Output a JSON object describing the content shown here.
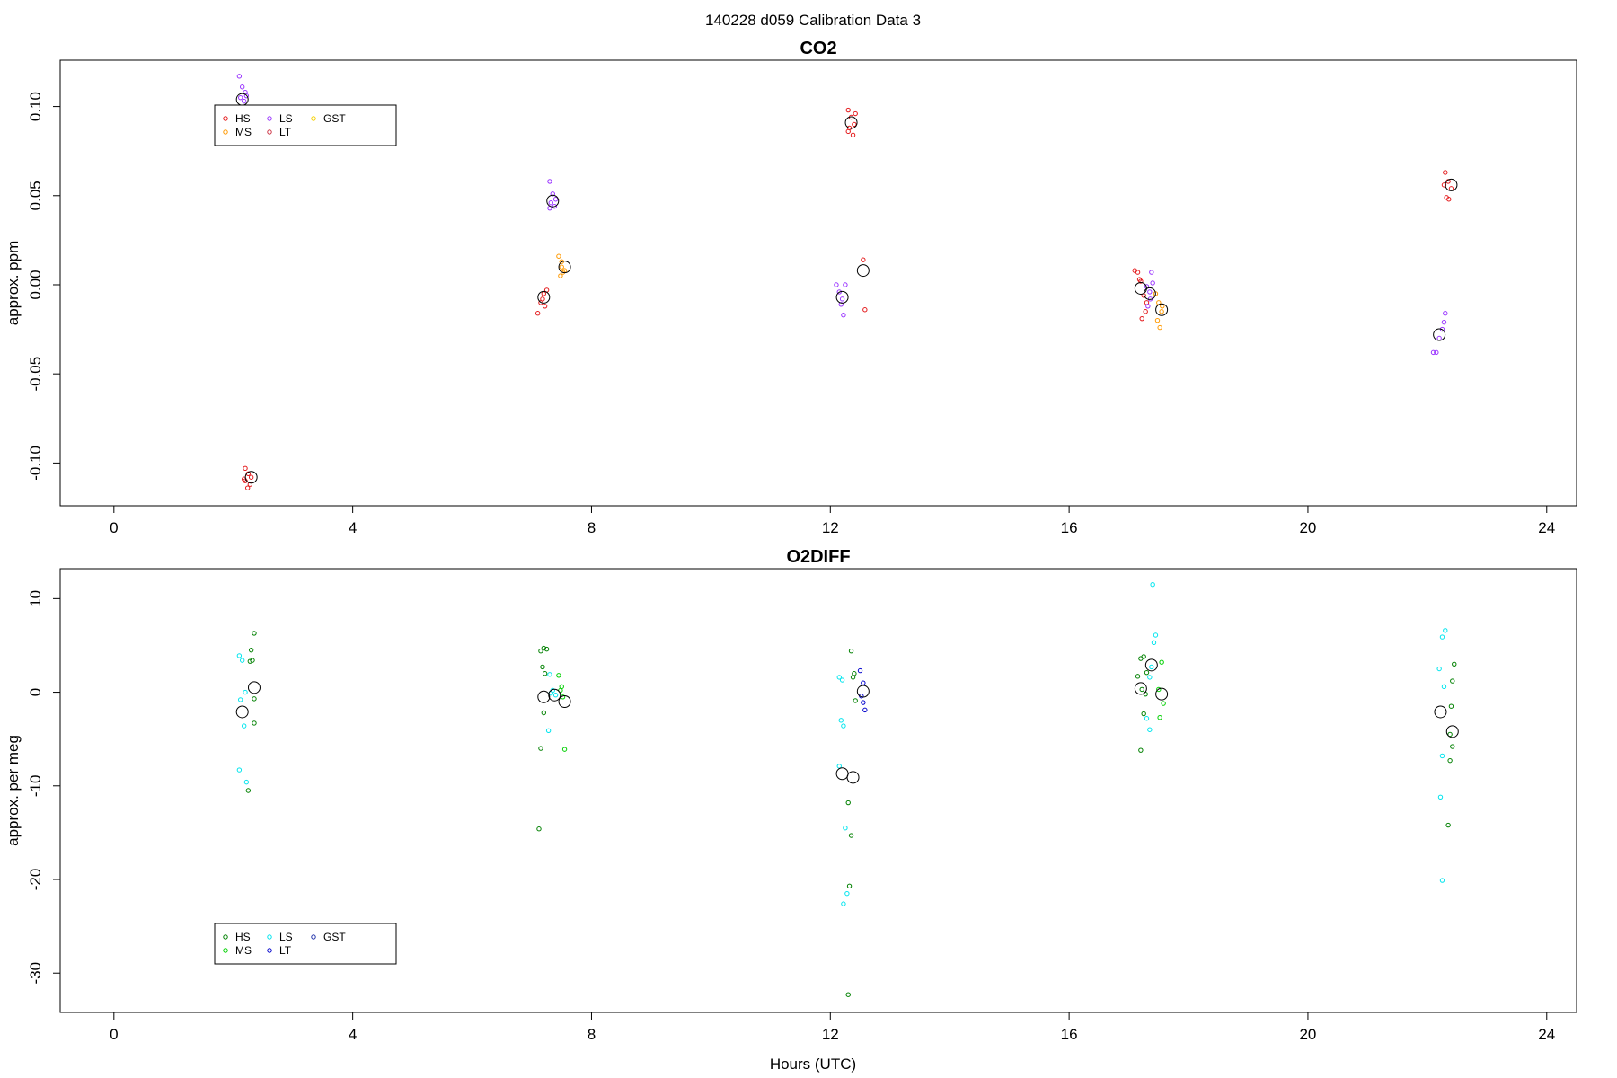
{
  "title": "140228   d059   Calibration Data 3",
  "xlabel": "Hours (UTC)",
  "chart_data": [
    {
      "type": "scatter",
      "title": "CO2",
      "ylabel": "approx. ppm",
      "xlim": [
        -0.9,
        24.5
      ],
      "ylim": [
        -0.124,
        0.126
      ],
      "xticks": [
        0,
        4,
        8,
        12,
        16,
        20,
        24
      ],
      "yticks": [
        -0.1,
        -0.05,
        0.0,
        0.05,
        0.1
      ],
      "ytick_labels": [
        "-0.10",
        "-0.05",
        "0.00",
        "0.05",
        "0.10"
      ],
      "legend": {
        "position": "top-left",
        "entries": [
          {
            "name": "HS",
            "color": "#e41a1c"
          },
          {
            "name": "MS",
            "color": "#ff9900"
          },
          {
            "name": "LS",
            "color": "#9933ff"
          },
          {
            "name": "LT",
            "color": "#cc3344"
          },
          {
            "name": "GST",
            "color": "#f5d000"
          }
        ]
      },
      "series": [
        {
          "name": "HS",
          "color": "#e41a1c",
          "points": [
            [
              2.2,
              -0.103
            ],
            [
              2.25,
              -0.106
            ],
            [
              2.3,
              -0.108
            ],
            [
              2.2,
              -0.11
            ],
            [
              2.28,
              -0.112
            ],
            [
              2.24,
              -0.114
            ],
            [
              2.18,
              -0.109
            ],
            [
              7.1,
              -0.016
            ],
            [
              7.15,
              -0.01
            ],
            [
              7.2,
              -0.005
            ],
            [
              7.25,
              -0.003
            ],
            [
              7.18,
              -0.008
            ],
            [
              7.22,
              -0.012
            ],
            [
              12.3,
              0.098
            ],
            [
              12.35,
              0.094
            ],
            [
              12.4,
              0.09
            ],
            [
              12.3,
              0.086
            ],
            [
              12.38,
              0.084
            ],
            [
              12.42,
              0.096
            ],
            [
              12.32,
              0.088
            ],
            [
              12.55,
              0.014
            ],
            [
              12.58,
              -0.014
            ],
            [
              17.1,
              0.008
            ],
            [
              17.15,
              0.007
            ],
            [
              17.2,
              0.002
            ],
            [
              17.25,
              -0.006
            ],
            [
              17.3,
              -0.01
            ],
            [
              17.28,
              -0.015
            ],
            [
              17.22,
              -0.019
            ],
            [
              17.18,
              0.003
            ],
            [
              22.3,
              0.063
            ],
            [
              22.35,
              0.058
            ],
            [
              22.4,
              0.054
            ],
            [
              22.32,
              0.049
            ],
            [
              22.36,
              0.048
            ],
            [
              22.28,
              0.056
            ]
          ]
        },
        {
          "name": "MS",
          "color": "#ff9900",
          "points": [
            [
              7.45,
              0.016
            ],
            [
              7.5,
              0.013
            ],
            [
              7.55,
              0.008
            ],
            [
              7.48,
              0.005
            ],
            [
              7.52,
              0.007
            ],
            [
              7.5,
              0.01
            ],
            [
              17.45,
              -0.005
            ],
            [
              17.5,
              -0.01
            ],
            [
              17.55,
              -0.015
            ],
            [
              17.48,
              -0.02
            ],
            [
              17.52,
              -0.024
            ],
            [
              17.56,
              -0.012
            ]
          ]
        },
        {
          "name": "LS",
          "color": "#9933ff",
          "points": [
            [
              2.1,
              0.117
            ],
            [
              2.15,
              0.111
            ],
            [
              2.2,
              0.108
            ],
            [
              2.12,
              0.105
            ],
            [
              2.18,
              0.103
            ],
            [
              2.22,
              0.106
            ],
            [
              7.3,
              0.058
            ],
            [
              7.35,
              0.051
            ],
            [
              7.4,
              0.048
            ],
            [
              7.32,
              0.046
            ],
            [
              7.38,
              0.044
            ],
            [
              7.3,
              0.043
            ],
            [
              12.1,
              0.0
            ],
            [
              12.15,
              -0.004
            ],
            [
              12.2,
              -0.008
            ],
            [
              12.18,
              -0.011
            ],
            [
              12.22,
              -0.017
            ],
            [
              12.25,
              0.0
            ],
            [
              17.3,
              -0.001
            ],
            [
              17.35,
              -0.004
            ],
            [
              17.4,
              0.001
            ],
            [
              17.38,
              0.007
            ],
            [
              17.36,
              -0.008
            ],
            [
              17.32,
              -0.012
            ],
            [
              22.1,
              -0.038
            ],
            [
              22.15,
              -0.038
            ],
            [
              22.2,
              -0.03
            ],
            [
              22.25,
              -0.025
            ],
            [
              22.28,
              -0.021
            ],
            [
              22.3,
              -0.016
            ]
          ]
        },
        {
          "name": "LT",
          "color": "#cc3344",
          "points": []
        },
        {
          "name": "GST",
          "color": "#f5d000",
          "points": []
        }
      ],
      "means": [
        [
          2.15,
          0.104
        ],
        [
          2.3,
          -0.108
        ],
        [
          7.2,
          -0.007
        ],
        [
          7.35,
          0.047
        ],
        [
          7.55,
          0.01
        ],
        [
          12.2,
          -0.007
        ],
        [
          12.35,
          0.091
        ],
        [
          12.55,
          0.008
        ],
        [
          17.2,
          -0.002
        ],
        [
          17.35,
          -0.005
        ],
        [
          17.55,
          -0.014
        ],
        [
          22.2,
          -0.028
        ],
        [
          22.4,
          0.056
        ]
      ]
    },
    {
      "type": "scatter",
      "title": "O2DIFF",
      "ylabel": "approx. per meg",
      "xlim": [
        -0.9,
        24.5
      ],
      "ylim": [
        -34.2,
        13.2
      ],
      "xticks": [
        0,
        4,
        8,
        12,
        16,
        20,
        24
      ],
      "yticks": [
        -30,
        -20,
        -10,
        0,
        10
      ],
      "ytick_labels": [
        "-30",
        "-20",
        "-10",
        "0",
        "10"
      ],
      "legend": {
        "position": "bottom-left",
        "entries": [
          {
            "name": "HS",
            "color": "#008000"
          },
          {
            "name": "MS",
            "color": "#00d000"
          },
          {
            "name": "LS",
            "color": "#00e5ee"
          },
          {
            "name": "LT",
            "color": "#0000cc"
          },
          {
            "name": "GST",
            "color": "#2233aa"
          }
        ]
      },
      "series": [
        {
          "name": "HS",
          "color": "#008000",
          "points": [
            [
              2.35,
              6.3
            ],
            [
              2.3,
              4.5
            ],
            [
              2.32,
              3.4
            ],
            [
              2.28,
              3.3
            ],
            [
              2.35,
              -0.7
            ],
            [
              2.35,
              -3.3
            ],
            [
              2.25,
              -10.5
            ],
            [
              7.2,
              4.7
            ],
            [
              7.25,
              4.6
            ],
            [
              7.15,
              4.4
            ],
            [
              7.18,
              2.7
            ],
            [
              7.22,
              2.0
            ],
            [
              7.2,
              -2.2
            ],
            [
              7.15,
              -6.0
            ],
            [
              7.12,
              -14.6
            ],
            [
              12.35,
              4.4
            ],
            [
              12.4,
              2.0
            ],
            [
              12.38,
              1.6
            ],
            [
              12.42,
              -0.9
            ],
            [
              12.3,
              -11.8
            ],
            [
              12.35,
              -15.3
            ],
            [
              12.32,
              -20.7
            ],
            [
              12.3,
              -32.3
            ],
            [
              17.2,
              3.6
            ],
            [
              17.25,
              3.8
            ],
            [
              17.3,
              2.1
            ],
            [
              17.15,
              1.7
            ],
            [
              17.22,
              0.3
            ],
            [
              17.28,
              -0.2
            ],
            [
              17.25,
              -2.3
            ],
            [
              17.2,
              -6.2
            ],
            [
              22.45,
              3.0
            ],
            [
              22.42,
              1.2
            ],
            [
              22.4,
              -1.5
            ],
            [
              22.38,
              -4.5
            ],
            [
              22.42,
              -5.8
            ],
            [
              22.38,
              -7.3
            ],
            [
              22.35,
              -14.2
            ]
          ]
        },
        {
          "name": "MS",
          "color": "#00d000",
          "points": [
            [
              7.45,
              1.8
            ],
            [
              7.5,
              0.6
            ],
            [
              7.48,
              0.2
            ],
            [
              7.52,
              -0.5
            ],
            [
              7.55,
              -6.1
            ],
            [
              17.55,
              3.2
            ],
            [
              17.5,
              0.3
            ],
            [
              17.58,
              -1.2
            ],
            [
              17.52,
              -2.7
            ]
          ]
        },
        {
          "name": "LS",
          "color": "#00e5ee",
          "points": [
            [
              2.1,
              3.9
            ],
            [
              2.15,
              3.4
            ],
            [
              2.2,
              0.0
            ],
            [
              2.12,
              -0.8
            ],
            [
              2.18,
              -3.6
            ],
            [
              2.1,
              -8.3
            ],
            [
              2.22,
              -9.6
            ],
            [
              7.3,
              1.9
            ],
            [
              7.35,
              0.2
            ],
            [
              7.4,
              -0.3
            ],
            [
              7.32,
              -0.1
            ],
            [
              7.28,
              -4.1
            ],
            [
              12.15,
              1.6
            ],
            [
              12.2,
              1.3
            ],
            [
              12.18,
              -3.0
            ],
            [
              12.22,
              -3.6
            ],
            [
              12.15,
              -7.9
            ],
            [
              12.25,
              -14.5
            ],
            [
              12.28,
              -21.5
            ],
            [
              12.22,
              -22.6
            ],
            [
              17.4,
              11.5
            ],
            [
              17.45,
              6.1
            ],
            [
              17.42,
              5.3
            ],
            [
              17.38,
              2.7
            ],
            [
              17.35,
              1.6
            ],
            [
              17.3,
              -2.8
            ],
            [
              17.35,
              -4.0
            ],
            [
              22.3,
              6.6
            ],
            [
              22.25,
              5.9
            ],
            [
              22.2,
              2.5
            ],
            [
              22.28,
              0.6
            ],
            [
              22.25,
              -6.8
            ],
            [
              22.22,
              -11.2
            ],
            [
              22.25,
              -20.1
            ]
          ]
        },
        {
          "name": "LT",
          "color": "#0000cc",
          "points": [
            [
              12.5,
              2.3
            ],
            [
              12.55,
              1.0
            ],
            [
              12.52,
              -0.4
            ],
            [
              12.55,
              -1.1
            ],
            [
              12.58,
              -1.9
            ]
          ]
        },
        {
          "name": "GST",
          "color": "#2233aa",
          "points": []
        }
      ],
      "means": [
        [
          2.15,
          -2.1
        ],
        [
          2.35,
          0.5
        ],
        [
          7.2,
          -0.5
        ],
        [
          7.38,
          -0.3
        ],
        [
          7.55,
          -1.0
        ],
        [
          12.2,
          -8.7
        ],
        [
          12.38,
          -9.1
        ],
        [
          12.55,
          0.1
        ],
        [
          17.2,
          0.4
        ],
        [
          17.38,
          2.9
        ],
        [
          17.55,
          -0.2
        ],
        [
          22.22,
          -2.1
        ],
        [
          22.42,
          -4.2
        ]
      ]
    }
  ]
}
